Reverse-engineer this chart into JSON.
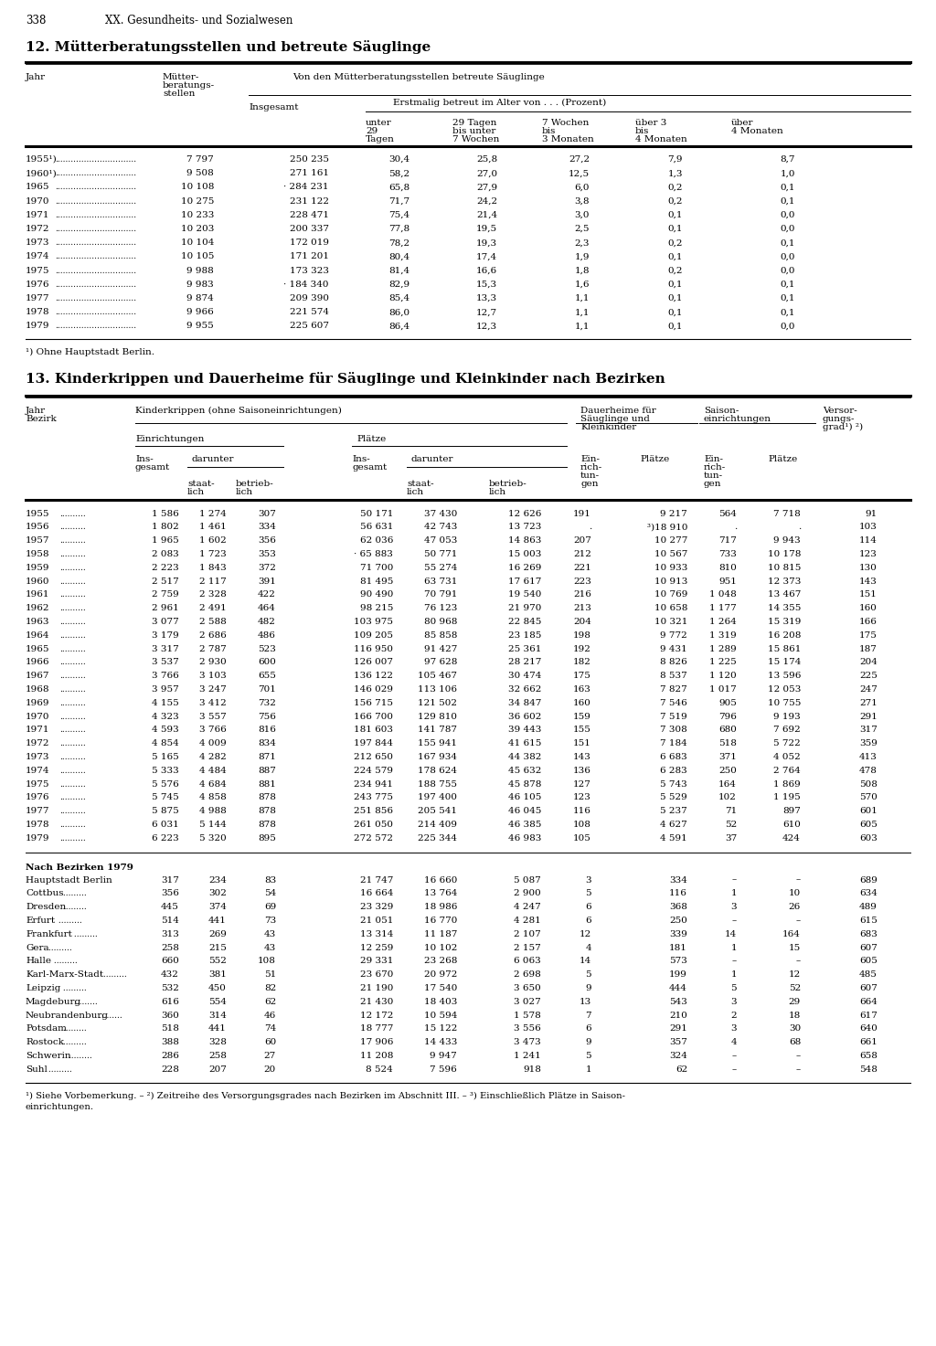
{
  "page_number": "338",
  "page_header": "XX. Gesundheits- und Sozialwesen",
  "section12_title": "12. Mütterberatungsstellen und betreute Säuglinge",
  "section12_data": [
    [
      "1955¹)",
      "7 797",
      "250 235",
      "30,4",
      "25,8",
      "27,2",
      "7,9",
      "8,7"
    ],
    [
      "1960¹)",
      "9 508",
      "271 161",
      "58,2",
      "27,0",
      "12,5",
      "1,3",
      "1,0"
    ],
    [
      "1965",
      "10 108",
      "· 284 231",
      "65,8",
      "27,9",
      "6,0",
      "0,2",
      "0,1"
    ],
    [
      "1970",
      "10 275",
      "231 122",
      "71,7",
      "24,2",
      "3,8",
      "0,2",
      "0,1"
    ],
    [
      "1971",
      "10 233",
      "228 471",
      "75,4",
      "21,4",
      "3,0",
      "0,1",
      "0,0"
    ],
    [
      "1972",
      "10 203",
      "200 337",
      "77,8",
      "19,5",
      "2,5",
      "0,1",
      "0,0"
    ],
    [
      "1973",
      "10 104",
      "172 019",
      "78,2",
      "19,3",
      "2,3",
      "0,2",
      "0,1"
    ],
    [
      "1974",
      "10 105",
      "171 201",
      "80,4",
      "17,4",
      "1,9",
      "0,1",
      "0,0"
    ],
    [
      "1975",
      "9 988",
      "173 323",
      "81,4",
      "16,6",
      "1,8",
      "0,2",
      "0,0"
    ],
    [
      "1976",
      "9 983",
      "· 184 340",
      "82,9",
      "15,3",
      "1,6",
      "0,1",
      "0,1"
    ],
    [
      "1977",
      "9 874",
      "209 390",
      "85,4",
      "13,3",
      "1,1",
      "0,1",
      "0,1"
    ],
    [
      "1978",
      "9 966",
      "221 574",
      "86,0",
      "12,7",
      "1,1",
      "0,1",
      "0,1"
    ],
    [
      "1979",
      "9 955",
      "225 607",
      "86,4",
      "12,3",
      "1,1",
      "0,1",
      "0,0"
    ]
  ],
  "section12_footnote": "¹) Ohne Hauptstadt Berlin.",
  "section13_title": "13. Kinderkrippen und Dauerheime für Säuglinge und Kleinkinder nach Bezirken",
  "section13_year_data": [
    [
      "1955",
      "1 586",
      "1 274",
      "307",
      "50 171",
      "37 430",
      "12 626",
      "191",
      "9 217",
      "564",
      "7 718",
      "91"
    ],
    [
      "1956",
      "1 802",
      "1 461",
      "334",
      "56 631",
      "42 743",
      "13 723",
      ".",
      "³)18 910",
      ".",
      ".",
      "103"
    ],
    [
      "1957",
      "1 965",
      "1 602",
      "356",
      "62 036",
      "47 053",
      "14 863",
      "207",
      "10 277",
      "717",
      "9 943",
      "114"
    ],
    [
      "1958",
      "2 083",
      "1 723",
      "353",
      "· 65 883",
      "50 771",
      "15 003",
      "212",
      "10 567",
      "733",
      "10 178",
      "123"
    ],
    [
      "1959",
      "2 223",
      "1 843",
      "372",
      "71 700",
      "55 274",
      "16 269",
      "221",
      "10 933",
      "810",
      "10 815",
      "130"
    ],
    [
      "1960",
      "2 517",
      "2 117",
      "391",
      "81 495",
      "63 731",
      "17 617",
      "223",
      "10 913",
      "951",
      "12 373",
      "143"
    ],
    [
      "1961",
      "2 759",
      "2 328",
      "422",
      "90 490",
      "70 791",
      "19 540",
      "216",
      "10 769",
      "1 048",
      "13 467",
      "151"
    ],
    [
      "1962",
      "2 961",
      "2 491",
      "464",
      "98 215",
      "76 123",
      "21 970",
      "213",
      "10 658",
      "1 177",
      "14 355",
      "160"
    ],
    [
      "1963",
      "3 077",
      "2 588",
      "482",
      "103 975",
      "80 968",
      "22 845",
      "204",
      "10 321",
      "1 264",
      "15 319",
      "166"
    ],
    [
      "1964",
      "3 179",
      "2 686",
      "486",
      "109 205",
      "85 858",
      "23 185",
      "198",
      "9 772",
      "1 319",
      "16 208",
      "175"
    ],
    [
      "1965",
      "3 317",
      "2 787",
      "523",
      "116 950",
      "91 427",
      "25 361",
      "192",
      "9 431",
      "1 289",
      "15 861",
      "187"
    ],
    [
      "1966",
      "3 537",
      "2 930",
      "600",
      "126 007",
      "97 628",
      "28 217",
      "182",
      "8 826",
      "1 225",
      "15 174",
      "204"
    ],
    [
      "1967",
      "3 766",
      "3 103",
      "655",
      "136 122",
      "105 467",
      "30 474",
      "175",
      "8 537",
      "1 120",
      "13 596",
      "225"
    ],
    [
      "1968",
      "3 957",
      "3 247",
      "701",
      "146 029",
      "113 106",
      "32 662",
      "163",
      "7 827",
      "1 017",
      "12 053",
      "247"
    ],
    [
      "1969",
      "4 155",
      "3 412",
      "732",
      "156 715",
      "121 502",
      "34 847",
      "160",
      "7 546",
      "905",
      "10 755",
      "271"
    ],
    [
      "1970",
      "4 323",
      "3 557",
      "756",
      "166 700",
      "129 810",
      "36 602",
      "159",
      "7 519",
      "796",
      "9 193",
      "291"
    ],
    [
      "1971",
      "4 593",
      "3 766",
      "816",
      "181 603",
      "141 787",
      "39 443",
      "155",
      "7 308",
      "680",
      "7 692",
      "317"
    ],
    [
      "1972",
      "4 854",
      "4 009",
      "834",
      "197 844",
      "155 941",
      "41 615",
      "151",
      "7 184",
      "518",
      "5 722",
      "359"
    ],
    [
      "1973",
      "5 165",
      "4 282",
      "871",
      "212 650",
      "167 934",
      "44 382",
      "143",
      "6 683",
      "371",
      "4 052",
      "413"
    ],
    [
      "1974",
      "5 333",
      "4 484",
      "887",
      "224 579",
      "178 624",
      "45 632",
      "136",
      "6 283",
      "250",
      "2 764",
      "478"
    ],
    [
      "1975",
      "5 576",
      "4 684",
      "881",
      "234 941",
      "188 755",
      "45 878",
      "127",
      "5 743",
      "164",
      "1 869",
      "508"
    ],
    [
      "1976",
      "5 745",
      "4 858",
      "878",
      "243 775",
      "197 400",
      "46 105",
      "123",
      "5 529",
      "102",
      "1 195",
      "570"
    ],
    [
      "1977",
      "5 875",
      "4 988",
      "878",
      "251 856",
      "205 541",
      "46 045",
      "116",
      "5 237",
      "71",
      "897",
      "601"
    ],
    [
      "1978",
      "6 031",
      "5 144",
      "878",
      "261 050",
      "214 409",
      "46 385",
      "108",
      "4 627",
      "52",
      "610",
      "605"
    ],
    [
      "1979",
      "6 223",
      "5 320",
      "895",
      "272 572",
      "225 344",
      "46 983",
      "105",
      "4 591",
      "37",
      "424",
      "603"
    ]
  ],
  "section13_bezirk_data": [
    [
      "Hauptstadt Berlin",
      "317",
      "234",
      "83",
      "21 747",
      "16 660",
      "5 087",
      "3",
      "334",
      "–",
      "–",
      "689"
    ],
    [
      "Cottbus",
      "356",
      "302",
      "54",
      "16 664",
      "13 764",
      "2 900",
      "5",
      "116",
      "1",
      "10",
      "634"
    ],
    [
      "Dresden",
      "445",
      "374",
      "69",
      "23 329",
      "18 986",
      "4 247",
      "6",
      "368",
      "3",
      "26",
      "489"
    ],
    [
      "Erfurt",
      "514",
      "441",
      "73",
      "21 051",
      "16 770",
      "4 281",
      "6",
      "250",
      "–",
      "–",
      "615"
    ],
    [
      "Frankfurt",
      "313",
      "269",
      "43",
      "13 314",
      "11 187",
      "2 107",
      "12",
      "339",
      "14",
      "164",
      "683"
    ],
    [
      "Gera",
      "258",
      "215",
      "43",
      "12 259",
      "10 102",
      "2 157",
      "4",
      "181",
      "1",
      "15",
      "607"
    ],
    [
      "Halle",
      "660",
      "552",
      "108",
      "29 331",
      "23 268",
      "6 063",
      "14",
      "573",
      "–",
      "–",
      "605"
    ],
    [
      "Karl-Marx-Stadt",
      "432",
      "381",
      "51",
      "23 670",
      "20 972",
      "2 698",
      "5",
      "199",
      "1",
      "12",
      "485"
    ],
    [
      "Leipzig",
      "532",
      "450",
      "82",
      "21 190",
      "17 540",
      "3 650",
      "9",
      "444",
      "5",
      "52",
      "607"
    ],
    [
      "Magdeburg",
      "616",
      "554",
      "62",
      "21 430",
      "18 403",
      "3 027",
      "13",
      "543",
      "3",
      "29",
      "664"
    ],
    [
      "Neubrandenburg",
      "360",
      "314",
      "46",
      "12 172",
      "10 594",
      "1 578",
      "7",
      "210",
      "2",
      "18",
      "617"
    ],
    [
      "Potsdam",
      "518",
      "441",
      "74",
      "18 777",
      "15 122",
      "3 556",
      "6",
      "291",
      "3",
      "30",
      "640"
    ],
    [
      "Rostock",
      "388",
      "328",
      "60",
      "17 906",
      "14 433",
      "3 473",
      "9",
      "357",
      "4",
      "68",
      "661"
    ],
    [
      "Schwerin",
      "286",
      "258",
      "27",
      "11 208",
      "9 947",
      "1 241",
      "5",
      "324",
      "–",
      "–",
      "658"
    ],
    [
      "Suhl",
      "228",
      "207",
      "20",
      "8 524",
      "7 596",
      "918",
      "1",
      "62",
      "–",
      "–",
      "548"
    ]
  ],
  "section13_footnotes": [
    "¹) Siehe Vorbemerkung. – ²) Zeitreihe des Versorgungsgrades nach Bezirken im Abschnitt III. – ³) Einschließlich Plätze in Saison-",
    "einrichtungen."
  ]
}
